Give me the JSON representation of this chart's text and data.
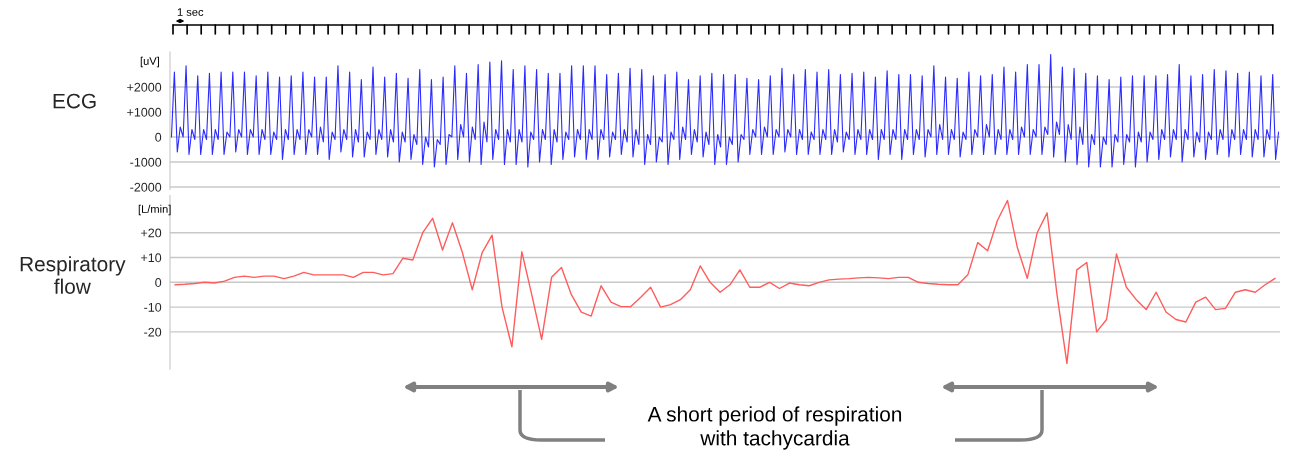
{
  "chart_data": [
    {
      "type": "line",
      "ylabel": "ECG",
      "annotations": [
        "[uV]",
        "1 sec"
      ],
      "ylim": [
        -2100,
        3400
      ],
      "yticks": [
        {
          "value": 2000,
          "label": "+2000"
        },
        {
          "value": 1000,
          "label": "+1000"
        },
        0,
        -1000,
        -2000
      ],
      "grid": "y",
      "categories": [
        null,
        null,
        null,
        null,
        null,
        null,
        null,
        null,
        null,
        null,
        null,
        null,
        null,
        null,
        null,
        null,
        null,
        null,
        null,
        null,
        null,
        null,
        null,
        null,
        null,
        null,
        null,
        null,
        null,
        null,
        null,
        null,
        null,
        null,
        null,
        null,
        null,
        null,
        null,
        null,
        null,
        null,
        null,
        null,
        null,
        null,
        null,
        null,
        null,
        null,
        null,
        null,
        null,
        null,
        null,
        null,
        null,
        null,
        null,
        null,
        null,
        null,
        null,
        null,
        null,
        null,
        null,
        null,
        null,
        null,
        null,
        null,
        null,
        null,
        null,
        null,
        null,
        null,
        null,
        null,
        null,
        null,
        null,
        null,
        null,
        null,
        null,
        null,
        null,
        null,
        null,
        null,
        null,
        null,
        null,
        null,
        null,
        null,
        null,
        null,
        null,
        null,
        null,
        null,
        null,
        null,
        null,
        null,
        null,
        null,
        null,
        null,
        null,
        null,
        null,
        null,
        null,
        null,
        null,
        null,
        null,
        null,
        null,
        null,
        null,
        null,
        null,
        null,
        null,
        null,
        null,
        null,
        null,
        null,
        null,
        null,
        null,
        null,
        null,
        null,
        null,
        null,
        null,
        null,
        null,
        null,
        null,
        null,
        null,
        null,
        null,
        null,
        null,
        null,
        null,
        null,
        null,
        null,
        null,
        null,
        null,
        null,
        null,
        null,
        null,
        null,
        null,
        null,
        null,
        null,
        null,
        null,
        null,
        null,
        null,
        null,
        null,
        null,
        null,
        null,
        null,
        null,
        null,
        null,
        null,
        null,
        null,
        null,
        null,
        null,
        null,
        null,
        null,
        null,
        null,
        null,
        null,
        null,
        null,
        null,
        null,
        null,
        null,
        null,
        null,
        null,
        null,
        null,
        null,
        null,
        null,
        null,
        null,
        null,
        null,
        null,
        null,
        null,
        null,
        null,
        null,
        null,
        null,
        null,
        null,
        null,
        null,
        null,
        null,
        null,
        null,
        null,
        null,
        null,
        null,
        null,
        null,
        null,
        null,
        null,
        null,
        null,
        null,
        null,
        null,
        null,
        null,
        null,
        null,
        null,
        null,
        null,
        null,
        null,
        null,
        null,
        null,
        null,
        null,
        null,
        null,
        null,
        null,
        null,
        null,
        null,
        null,
        null,
        null,
        null,
        null,
        null,
        null,
        null,
        null,
        null,
        null,
        null,
        null,
        null,
        null,
        null,
        null,
        null,
        null,
        null,
        null,
        null,
        null,
        null,
        null,
        null,
        null,
        null,
        null,
        null,
        null,
        null,
        null,
        null,
        null,
        null,
        null,
        null,
        null,
        null,
        null,
        null,
        null,
        null,
        null,
        null,
        null,
        null,
        null,
        null,
        null,
        null,
        null,
        null,
        null,
        null,
        null,
        null,
        null,
        null,
        null,
        null,
        null,
        null,
        null,
        null,
        null,
        null,
        null,
        null,
        null,
        null,
        null,
        null,
        null,
        null,
        null,
        null,
        null,
        null,
        null,
        null,
        null,
        null,
        null,
        null,
        null,
        null,
        null,
        null,
        null,
        null,
        null,
        null,
        null,
        null,
        null,
        null,
        null,
        null,
        null,
        null,
        null,
        null,
        null,
        null,
        null,
        null,
        null,
        null,
        null,
        null,
        null,
        null
      ],
      "series": [
        {
          "color": "#2b2bff",
          "values": [
            0,
            2600,
            -600,
            400,
            0,
            2850,
            -700,
            300,
            -100,
            2450,
            -700,
            300,
            -100,
            2550,
            -700,
            300,
            -100,
            2600,
            -700,
            200,
            0,
            2600,
            -600,
            300,
            0,
            2600,
            -700,
            300,
            0,
            2450,
            -700,
            300,
            -100,
            2600,
            -700,
            200,
            -100,
            2400,
            -900,
            300,
            -100,
            2450,
            -700,
            300,
            -100,
            2600,
            -700,
            300,
            0,
            2400,
            -700,
            400,
            -200,
            2400,
            -900,
            200,
            -100,
            2850,
            -600,
            300,
            -100,
            2600,
            -800,
            300,
            -200,
            2300,
            -800,
            200,
            -100,
            2800,
            -700,
            300,
            -100,
            2400,
            -800,
            300,
            -200,
            2550,
            -1000,
            200,
            -200,
            2350,
            -900,
            100,
            -300,
            2700,
            -1100,
            0,
            -400,
            2300,
            -1200,
            -100,
            -300,
            2400,
            -1100,
            100,
            0,
            2850,
            -900,
            500,
            0,
            2550,
            -1000,
            400,
            -100,
            2900,
            -1100,
            600,
            -200,
            3000,
            -900,
            300,
            -100,
            3050,
            -1100,
            300,
            -200,
            2700,
            -1100,
            300,
            -200,
            2850,
            -1200,
            200,
            -100,
            2700,
            -1000,
            300,
            -100,
            2550,
            -1100,
            300,
            -200,
            2550,
            -900,
            200,
            -100,
            2850,
            -800,
            300,
            -100,
            2850,
            -900,
            300,
            -100,
            2850,
            -900,
            300,
            -100,
            2500,
            -800,
            200,
            -100,
            2550,
            -700,
            300,
            -200,
            2750,
            -800,
            300,
            -300,
            2700,
            -1100,
            100,
            -300,
            2450,
            -1000,
            0,
            -200,
            2500,
            -1100,
            200,
            -100,
            2600,
            -900,
            400,
            -100,
            2300,
            -700,
            300,
            -200,
            2450,
            -800,
            200,
            -300,
            2550,
            -1100,
            100,
            -400,
            2500,
            -1100,
            0,
            -300,
            2500,
            -1000,
            100,
            -100,
            2350,
            -700,
            300,
            0,
            2300,
            -700,
            400,
            0,
            2450,
            -700,
            300,
            0,
            2750,
            -600,
            300,
            0,
            2500,
            -700,
            300,
            -100,
            2700,
            -700,
            200,
            -100,
            2600,
            -700,
            300,
            -100,
            2700,
            -700,
            300,
            -200,
            2500,
            -600,
            200,
            -100,
            2550,
            -700,
            300,
            -100,
            2600,
            -700,
            300,
            -100,
            2400,
            -900,
            300,
            -100,
            2650,
            -700,
            300,
            -100,
            2500,
            -900,
            300,
            -100,
            2500,
            -700,
            300,
            -100,
            2450,
            -800,
            300,
            0,
            2850,
            -700,
            500,
            -100,
            2400,
            -700,
            300,
            -100,
            2350,
            -800,
            200,
            -100,
            2600,
            -700,
            300,
            0,
            2450,
            -700,
            500,
            0,
            2500,
            -700,
            300,
            -100,
            2800,
            -700,
            300,
            -100,
            2600,
            -700,
            400,
            0,
            2900,
            -700,
            300,
            0,
            2900,
            -700,
            400,
            100,
            3300,
            -800,
            600,
            100,
            2800,
            -1000,
            500,
            -100,
            2750,
            -1100,
            400,
            -300,
            2550,
            -1200,
            100,
            -300,
            2450,
            -1200,
            0,
            -300,
            2300,
            -1200,
            100,
            -200,
            2400,
            -1100,
            100,
            -200,
            2450,
            -1200,
            200,
            -200,
            2450,
            -1000,
            200,
            -100,
            2450,
            -900,
            300,
            -100,
            2500,
            -800,
            300,
            -100,
            2900,
            -1000,
            300,
            -100,
            2450,
            -800,
            200,
            -200,
            2500,
            -900,
            200,
            -100,
            2700,
            -700,
            300,
            -100,
            2650,
            -800,
            300,
            -100,
            2550,
            -700,
            300,
            -100,
            2600,
            -800,
            300,
            -100,
            2450,
            -800,
            300,
            -100,
            2500,
            -900,
            200
          ]
        }
      ]
    },
    {
      "type": "line",
      "ylabel": "Respiratory\nflow",
      "annotations": [
        "[L/min]",
        "A short period of respiration\nwith tachycardia"
      ],
      "ylim": [
        -35,
        35
      ],
      "yticks": [
        {
          "value": 20,
          "label": "+20"
        },
        {
          "value": 10,
          "label": "+10"
        },
        0,
        -10,
        -20
      ],
      "grid": "y",
      "categories": [
        null,
        null,
        null,
        null,
        null,
        null,
        null,
        null,
        null,
        null,
        null,
        null,
        null,
        null,
        null,
        null,
        null,
        null,
        null,
        null,
        null,
        null,
        null,
        null,
        null,
        null,
        null,
        null,
        null,
        null,
        null,
        null,
        null,
        null,
        null,
        null,
        null,
        null,
        null,
        null,
        null,
        null,
        null,
        null,
        null,
        null,
        null,
        null,
        null,
        null,
        null,
        null,
        null,
        null,
        null,
        null,
        null,
        null,
        null,
        null,
        null,
        null,
        null,
        null,
        null,
        null,
        null,
        null,
        null,
        null,
        null,
        null,
        null,
        null,
        null,
        null,
        null,
        null,
        null,
        null,
        null,
        null,
        null,
        null,
        null,
        null,
        null,
        null,
        null,
        null,
        null,
        null,
        null,
        null,
        null,
        null,
        null,
        null,
        null,
        null,
        null,
        null,
        null,
        null,
        null,
        null,
        null,
        null,
        null,
        null,
        null,
        null
      ],
      "series": [
        {
          "color": "#ff5c5c",
          "values": [
            -1,
            -0.8,
            -0.5,
            0,
            -0.3,
            0.5,
            2,
            2.5,
            2,
            2.5,
            2.5,
            1.5,
            2.5,
            4,
            3,
            3,
            3,
            3,
            2,
            4,
            4,
            3,
            3.5,
            9.7,
            9,
            20,
            25.8,
            13,
            24,
            12,
            -3,
            12,
            19,
            -10,
            -26,
            12.3,
            -5,
            -23,
            2,
            6,
            -5,
            -12,
            -13.6,
            -1.4,
            -8,
            -9.8,
            -9.8,
            -6,
            -2,
            -10,
            -9,
            -7,
            -3,
            6.6,
            0,
            -4,
            -1,
            5,
            -2,
            -2,
            0,
            -2.5,
            -0.3,
            -1,
            -1.4,
            0,
            1,
            1.3,
            1.5,
            1.8,
            2,
            1.8,
            1.5,
            2,
            2,
            0,
            -0.5,
            -0.8,
            -1,
            -1,
            3,
            16,
            12.7,
            25,
            33,
            14,
            1.6,
            20,
            28,
            -5,
            -32.7,
            5,
            8,
            -20,
            -15,
            11.4,
            -2,
            -7,
            -11,
            -4,
            -12,
            -15,
            -16,
            -8,
            -6,
            -11,
            -10.5,
            -4,
            -3,
            -4,
            -1,
            1.6
          ]
        }
      ]
    }
  ]
}
